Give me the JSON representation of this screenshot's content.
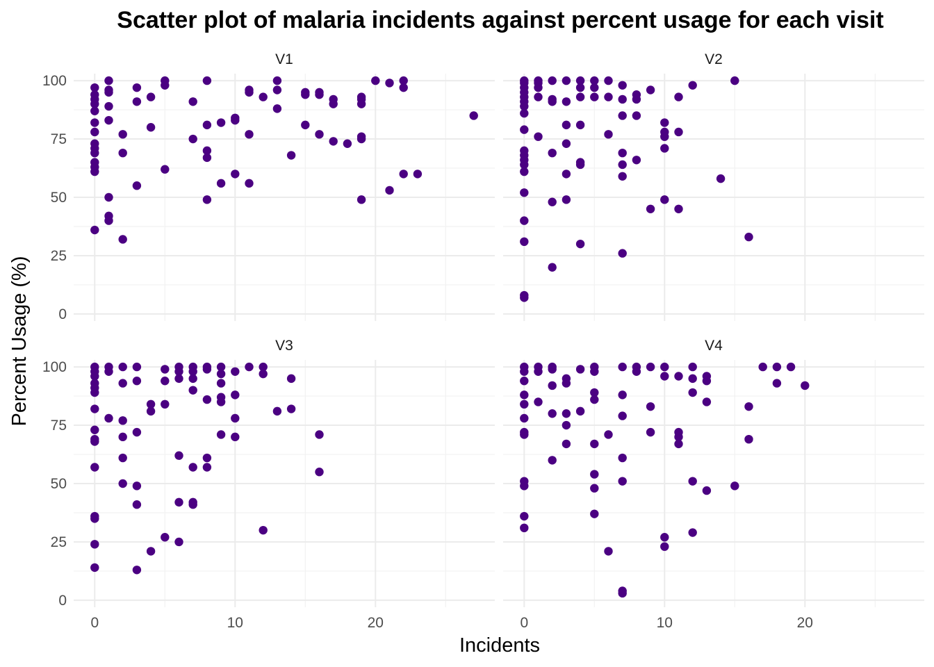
{
  "chart_data": {
    "type": "scatter",
    "title": "Scatter plot of malaria incidents against percent usage for each visit",
    "xlabel": "Incidents",
    "ylabel": "Percent Usage (%)",
    "xlim": [
      -1.5,
      28.5
    ],
    "ylim": [
      -3,
      103
    ],
    "x_ticks": [
      0,
      10,
      20
    ],
    "y_ticks": [
      0,
      25,
      50,
      75,
      100
    ],
    "grid": true,
    "point_color": "#4b0082",
    "facets": [
      {
        "name": "V1",
        "points": [
          [
            0,
            97
          ],
          [
            0,
            94
          ],
          [
            0,
            92
          ],
          [
            0,
            90
          ],
          [
            0,
            87
          ],
          [
            0,
            82
          ],
          [
            0,
            78
          ],
          [
            0,
            73
          ],
          [
            0,
            71
          ],
          [
            0,
            69
          ],
          [
            0,
            65
          ],
          [
            0,
            63
          ],
          [
            0,
            61
          ],
          [
            0,
            36
          ],
          [
            1,
            100
          ],
          [
            1,
            96
          ],
          [
            1,
            95
          ],
          [
            1,
            89
          ],
          [
            1,
            83
          ],
          [
            1,
            50
          ],
          [
            1,
            42
          ],
          [
            1,
            40
          ],
          [
            2,
            77
          ],
          [
            2,
            69
          ],
          [
            2,
            32
          ],
          [
            3,
            97
          ],
          [
            3,
            91
          ],
          [
            3,
            55
          ],
          [
            4,
            93
          ],
          [
            4,
            80
          ],
          [
            5,
            100
          ],
          [
            5,
            98
          ],
          [
            5,
            62
          ],
          [
            7,
            91
          ],
          [
            7,
            75
          ],
          [
            8,
            100
          ],
          [
            8,
            81
          ],
          [
            8,
            70
          ],
          [
            8,
            67
          ],
          [
            8,
            49
          ],
          [
            9,
            82
          ],
          [
            9,
            56
          ],
          [
            10,
            84
          ],
          [
            10,
            83
          ],
          [
            10,
            60
          ],
          [
            11,
            96
          ],
          [
            11,
            95
          ],
          [
            11,
            77
          ],
          [
            11,
            56
          ],
          [
            12,
            93
          ],
          [
            13,
            100
          ],
          [
            13,
            96
          ],
          [
            13,
            88
          ],
          [
            14,
            68
          ],
          [
            15,
            95
          ],
          [
            15,
            94
          ],
          [
            15,
            81
          ],
          [
            16,
            95
          ],
          [
            16,
            94
          ],
          [
            16,
            77
          ],
          [
            17,
            92
          ],
          [
            17,
            90
          ],
          [
            17,
            74
          ],
          [
            18,
            73
          ],
          [
            19,
            93
          ],
          [
            19,
            92
          ],
          [
            19,
            90
          ],
          [
            19,
            76
          ],
          [
            19,
            75
          ],
          [
            19,
            49
          ],
          [
            20,
            100
          ],
          [
            21,
            99
          ],
          [
            21,
            53
          ],
          [
            22,
            100
          ],
          [
            22,
            97
          ],
          [
            22,
            60
          ],
          [
            23,
            60
          ],
          [
            27,
            85
          ]
        ]
      },
      {
        "name": "V2",
        "points": [
          [
            0,
            100
          ],
          [
            0,
            99
          ],
          [
            0,
            97
          ],
          [
            0,
            95
          ],
          [
            0,
            93
          ],
          [
            0,
            91
          ],
          [
            0,
            89
          ],
          [
            0,
            86
          ],
          [
            0,
            79
          ],
          [
            0,
            70
          ],
          [
            0,
            68
          ],
          [
            0,
            66
          ],
          [
            0,
            64
          ],
          [
            0,
            61
          ],
          [
            0,
            52
          ],
          [
            0,
            40
          ],
          [
            0,
            31
          ],
          [
            0,
            8
          ],
          [
            0,
            7
          ],
          [
            1,
            100
          ],
          [
            1,
            99
          ],
          [
            1,
            97
          ],
          [
            1,
            93
          ],
          [
            1,
            76
          ],
          [
            2,
            100
          ],
          [
            2,
            92
          ],
          [
            2,
            91
          ],
          [
            2,
            69
          ],
          [
            2,
            48
          ],
          [
            2,
            20
          ],
          [
            3,
            100
          ],
          [
            3,
            91
          ],
          [
            3,
            81
          ],
          [
            3,
            73
          ],
          [
            3,
            60
          ],
          [
            3,
            49
          ],
          [
            4,
            100
          ],
          [
            4,
            97
          ],
          [
            4,
            93
          ],
          [
            4,
            81
          ],
          [
            4,
            65
          ],
          [
            4,
            64
          ],
          [
            4,
            30
          ],
          [
            5,
            100
          ],
          [
            5,
            97
          ],
          [
            5,
            93
          ],
          [
            6,
            100
          ],
          [
            6,
            93
          ],
          [
            6,
            77
          ],
          [
            7,
            98
          ],
          [
            7,
            92
          ],
          [
            7,
            85
          ],
          [
            7,
            69
          ],
          [
            7,
            64
          ],
          [
            7,
            59
          ],
          [
            7,
            26
          ],
          [
            8,
            94
          ],
          [
            8,
            92
          ],
          [
            8,
            85
          ],
          [
            8,
            66
          ],
          [
            9,
            96
          ],
          [
            9,
            45
          ],
          [
            10,
            82
          ],
          [
            10,
            78
          ],
          [
            10,
            76
          ],
          [
            10,
            71
          ],
          [
            10,
            49
          ],
          [
            11,
            93
          ],
          [
            11,
            78
          ],
          [
            11,
            45
          ],
          [
            12,
            98
          ],
          [
            14,
            58
          ],
          [
            15,
            100
          ],
          [
            16,
            33
          ]
        ]
      },
      {
        "name": "V3",
        "points": [
          [
            0,
            100
          ],
          [
            0,
            98
          ],
          [
            0,
            96
          ],
          [
            0,
            93
          ],
          [
            0,
            91
          ],
          [
            0,
            89
          ],
          [
            0,
            82
          ],
          [
            0,
            73
          ],
          [
            0,
            69
          ],
          [
            0,
            68
          ],
          [
            0,
            57
          ],
          [
            0,
            36
          ],
          [
            0,
            35
          ],
          [
            0,
            24
          ],
          [
            0,
            14
          ],
          [
            1,
            100
          ],
          [
            1,
            98
          ],
          [
            1,
            78
          ],
          [
            2,
            100
          ],
          [
            2,
            93
          ],
          [
            2,
            77
          ],
          [
            2,
            70
          ],
          [
            2,
            61
          ],
          [
            2,
            50
          ],
          [
            3,
            100
          ],
          [
            3,
            94
          ],
          [
            3,
            72
          ],
          [
            3,
            49
          ],
          [
            3,
            41
          ],
          [
            3,
            13
          ],
          [
            4,
            84
          ],
          [
            4,
            81
          ],
          [
            4,
            21
          ],
          [
            5,
            99
          ],
          [
            5,
            94
          ],
          [
            5,
            84
          ],
          [
            5,
            27
          ],
          [
            6,
            100
          ],
          [
            6,
            98
          ],
          [
            6,
            95
          ],
          [
            6,
            62
          ],
          [
            6,
            42
          ],
          [
            6,
            25
          ],
          [
            7,
            100
          ],
          [
            7,
            98
          ],
          [
            7,
            95
          ],
          [
            7,
            90
          ],
          [
            7,
            57
          ],
          [
            7,
            42
          ],
          [
            7,
            41
          ],
          [
            8,
            100
          ],
          [
            8,
            99
          ],
          [
            8,
            86
          ],
          [
            8,
            61
          ],
          [
            8,
            57
          ],
          [
            9,
            100
          ],
          [
            9,
            97
          ],
          [
            9,
            93
          ],
          [
            9,
            87
          ],
          [
            9,
            85
          ],
          [
            9,
            71
          ],
          [
            10,
            98
          ],
          [
            10,
            88
          ],
          [
            10,
            78
          ],
          [
            10,
            70
          ],
          [
            11,
            100
          ],
          [
            12,
            100
          ],
          [
            12,
            97
          ],
          [
            12,
            30
          ],
          [
            13,
            81
          ],
          [
            14,
            95
          ],
          [
            14,
            82
          ],
          [
            16,
            71
          ],
          [
            16,
            55
          ]
        ]
      },
      {
        "name": "V4",
        "points": [
          [
            0,
            100
          ],
          [
            0,
            98
          ],
          [
            0,
            94
          ],
          [
            0,
            88
          ],
          [
            0,
            84
          ],
          [
            0,
            78
          ],
          [
            0,
            72
          ],
          [
            0,
            71
          ],
          [
            0,
            51
          ],
          [
            0,
            49
          ],
          [
            0,
            36
          ],
          [
            0,
            31
          ],
          [
            1,
            100
          ],
          [
            1,
            98
          ],
          [
            1,
            85
          ],
          [
            2,
            100
          ],
          [
            2,
            99
          ],
          [
            2,
            92
          ],
          [
            2,
            80
          ],
          [
            2,
            60
          ],
          [
            3,
            95
          ],
          [
            3,
            93
          ],
          [
            3,
            80
          ],
          [
            3,
            75
          ],
          [
            3,
            67
          ],
          [
            4,
            99
          ],
          [
            4,
            81
          ],
          [
            5,
            100
          ],
          [
            5,
            98
          ],
          [
            5,
            89
          ],
          [
            5,
            86
          ],
          [
            5,
            67
          ],
          [
            5,
            54
          ],
          [
            5,
            48
          ],
          [
            5,
            37
          ],
          [
            6,
            71
          ],
          [
            6,
            21
          ],
          [
            7,
            100
          ],
          [
            7,
            88
          ],
          [
            7,
            79
          ],
          [
            7,
            61
          ],
          [
            7,
            51
          ],
          [
            7,
            4
          ],
          [
            7,
            3
          ],
          [
            8,
            100
          ],
          [
            8,
            98
          ],
          [
            9,
            100
          ],
          [
            9,
            83
          ],
          [
            9,
            72
          ],
          [
            10,
            100
          ],
          [
            10,
            96
          ],
          [
            10,
            27
          ],
          [
            10,
            23
          ],
          [
            11,
            96
          ],
          [
            11,
            72
          ],
          [
            11,
            70
          ],
          [
            11,
            67
          ],
          [
            12,
            100
          ],
          [
            12,
            95
          ],
          [
            12,
            89
          ],
          [
            12,
            51
          ],
          [
            12,
            29
          ],
          [
            13,
            96
          ],
          [
            13,
            94
          ],
          [
            13,
            85
          ],
          [
            13,
            47
          ],
          [
            15,
            49
          ],
          [
            16,
            83
          ],
          [
            16,
            69
          ],
          [
            17,
            100
          ],
          [
            18,
            100
          ],
          [
            18,
            93
          ],
          [
            19,
            100
          ],
          [
            20,
            92
          ]
        ]
      }
    ]
  }
}
